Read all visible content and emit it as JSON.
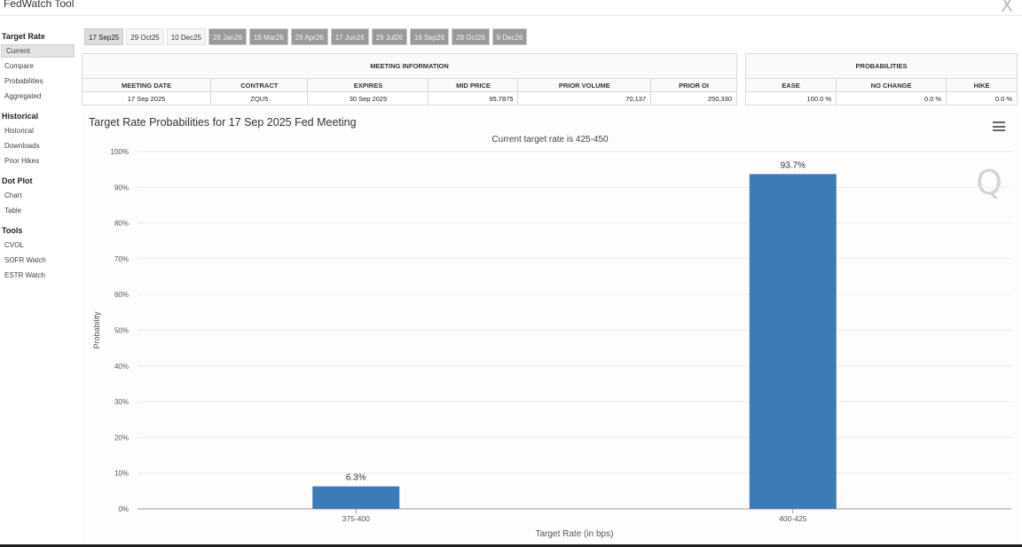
{
  "app": {
    "title": "FedWatch Tool",
    "close_glyph": "X"
  },
  "sidebar": {
    "sections": [
      {
        "heading": "Target Rate",
        "items": [
          {
            "label": "Current",
            "active": true
          },
          {
            "label": "Compare"
          },
          {
            "label": "Probabilities"
          },
          {
            "label": "Aggregated"
          }
        ]
      },
      {
        "heading": "Historical",
        "items": [
          {
            "label": "Historical"
          },
          {
            "label": "Downloads"
          },
          {
            "label": "Prior Hikes"
          }
        ]
      },
      {
        "heading": "Dot Plot",
        "items": [
          {
            "label": "Chart"
          },
          {
            "label": "Table"
          }
        ]
      },
      {
        "heading": "Tools",
        "items": [
          {
            "label": "CVOL"
          },
          {
            "label": "SOFR Watch"
          },
          {
            "label": "ESTR Watch"
          }
        ]
      }
    ]
  },
  "tabs": [
    "17 Sep25",
    "29 Oct25",
    "10 Dec25",
    "28 Jan26",
    "18 Mar26",
    "29 Apr26",
    "17 Jun26",
    "29 Jul26",
    "16 Sep26",
    "28 Oct26",
    "9 Dec26"
  ],
  "meeting_info": {
    "heading": "MEETING INFORMATION",
    "columns": [
      "MEETING DATE",
      "CONTRACT",
      "EXPIRES",
      "MID PRICE",
      "PRIOR VOLUME",
      "PRIOR OI"
    ],
    "row": [
      "17 Sep 2025",
      "ZQU5",
      "30 Sep 2025",
      "95.7875",
      "70,137",
      "250,330"
    ]
  },
  "probabilities": {
    "heading": "PROBABILITIES",
    "columns": [
      "EASE",
      "NO CHANGE",
      "HIKE"
    ],
    "row": [
      "100.0 %",
      "0.0 %",
      "0.0 %"
    ]
  },
  "chart": {
    "title": "Target Rate Probabilities for 17 Sep 2025 Fed Meeting",
    "subtitle": "Current target rate is 425-450",
    "watermark": "Q",
    "menu_icon": "hamburger-menu-icon"
  },
  "chart_data": {
    "type": "bar",
    "categories": [
      "375-400",
      "400-425"
    ],
    "values": [
      6.3,
      93.7
    ],
    "data_labels": [
      "6.3%",
      "93.7%"
    ],
    "xlabel": "Target Rate (in bps)",
    "ylabel": "Probability",
    "ylim": [
      0,
      100
    ],
    "yticks": [
      "0%",
      "10%",
      "20%",
      "30%",
      "40%",
      "50%",
      "60%",
      "70%",
      "80%",
      "90%",
      "100%"
    ],
    "bar_color": "#3d7ab8",
    "grid": true
  }
}
